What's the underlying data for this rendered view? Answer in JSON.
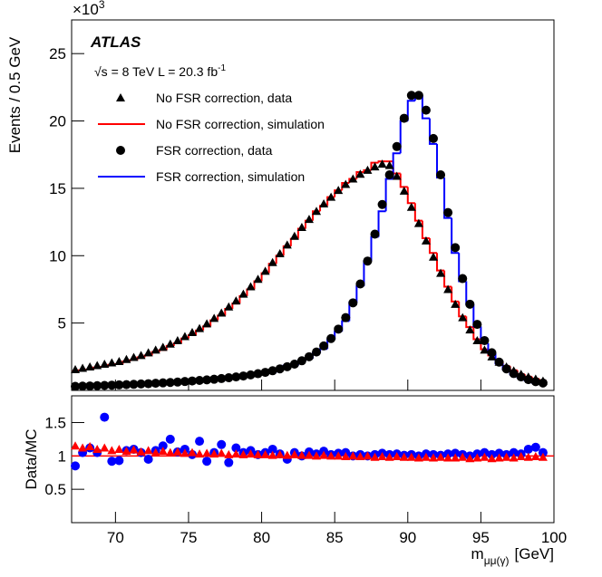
{
  "chart_data": [
    {
      "type": "hist-data",
      "atlas": "ATLAS",
      "energy": "√s = 8 TeV L = 20.3 fb",
      "lumi_exp": "-1",
      "exponent_base": "×10",
      "exponent": "3",
      "ylabel": "Events / 0.5 GeV",
      "xlim": [
        67,
        100
      ],
      "xticks": [
        70,
        75,
        80,
        85,
        90,
        95,
        100
      ],
      "ylim": [
        0,
        27.5
      ],
      "yticks": [
        5,
        10,
        15,
        20,
        25
      ],
      "x": [
        67.25,
        67.75,
        68.25,
        68.75,
        69.25,
        69.75,
        70.25,
        70.75,
        71.25,
        71.75,
        72.25,
        72.75,
        73.25,
        73.75,
        74.25,
        74.75,
        75.25,
        75.75,
        76.25,
        76.75,
        77.25,
        77.75,
        78.25,
        78.75,
        79.25,
        79.75,
        80.25,
        80.75,
        81.25,
        81.75,
        82.25,
        82.75,
        83.25,
        83.75,
        84.25,
        84.75,
        85.25,
        85.75,
        86.25,
        86.75,
        87.25,
        87.75,
        88.25,
        88.75,
        89.25,
        89.75,
        90.25,
        90.75,
        91.25,
        91.75,
        92.25,
        92.75,
        93.25,
        93.75,
        94.25,
        94.75,
        95.25,
        95.75,
        96.25,
        96.75,
        97.25,
        97.75,
        98.25,
        98.75,
        99.25
      ],
      "series": [
        {
          "name": "No FSR correction, data",
          "style": "triangle",
          "color": "#000000",
          "values": [
            1.55,
            1.65,
            1.75,
            1.85,
            1.95,
            2.05,
            2.15,
            2.3,
            2.45,
            2.6,
            2.8,
            3.0,
            3.2,
            3.45,
            3.7,
            4.0,
            4.3,
            4.6,
            4.95,
            5.35,
            5.75,
            6.2,
            6.65,
            7.15,
            7.7,
            8.25,
            8.85,
            9.5,
            10.15,
            10.8,
            11.45,
            12.1,
            12.7,
            13.3,
            13.85,
            14.35,
            14.85,
            15.3,
            15.7,
            16.05,
            16.35,
            16.6,
            16.8,
            16.7,
            15.9,
            14.8,
            13.6,
            12.4,
            11.1,
            9.9,
            8.7,
            7.5,
            6.4,
            5.4,
            4.5,
            3.7,
            3.0,
            2.5,
            2.1,
            1.75,
            1.45,
            1.2,
            1.0,
            0.85,
            0.7
          ]
        },
        {
          "name": "No FSR correction, simulation",
          "style": "step",
          "color": "#ff0000",
          "values": [
            1.4,
            1.5,
            1.55,
            1.7,
            1.75,
            1.9,
            1.95,
            2.15,
            2.25,
            2.45,
            2.6,
            2.85,
            3.0,
            3.3,
            3.5,
            3.85,
            4.1,
            4.45,
            4.75,
            5.2,
            5.55,
            6.05,
            6.45,
            7.0,
            7.5,
            8.1,
            8.7,
            9.4,
            10.0,
            10.7,
            11.25,
            12.0,
            12.6,
            13.3,
            13.7,
            14.35,
            14.85,
            15.4,
            15.7,
            16.2,
            16.35,
            16.9,
            17.0,
            17.0,
            16.1,
            15.1,
            13.9,
            12.6,
            11.3,
            10.2,
            8.9,
            7.7,
            6.6,
            5.5,
            4.7,
            3.8,
            3.05,
            2.6,
            2.15,
            1.8,
            1.5,
            1.2,
            1.02,
            0.86,
            0.71
          ]
        },
        {
          "name": "FSR correction, data",
          "style": "circle",
          "color": "#000000",
          "values": [
            0.3,
            0.32,
            0.33,
            0.35,
            0.37,
            0.39,
            0.41,
            0.43,
            0.45,
            0.48,
            0.5,
            0.53,
            0.56,
            0.59,
            0.62,
            0.66,
            0.7,
            0.74,
            0.78,
            0.83,
            0.88,
            0.94,
            1.0,
            1.07,
            1.15,
            1.24,
            1.34,
            1.46,
            1.6,
            1.76,
            1.95,
            2.2,
            2.5,
            2.85,
            3.3,
            3.85,
            4.55,
            5.4,
            6.5,
            7.9,
            9.6,
            11.6,
            13.8,
            16.0,
            18.1,
            20.2,
            21.9,
            21.9,
            20.8,
            18.7,
            16.0,
            13.2,
            10.6,
            8.3,
            6.4,
            4.9,
            3.7,
            2.8,
            2.1,
            1.6,
            1.25,
            1.0,
            0.8,
            0.65,
            0.55
          ]
        },
        {
          "name": "FSR correction, simulation",
          "style": "step",
          "color": "#0000ff",
          "values": [
            0.35,
            0.31,
            0.3,
            0.33,
            0.24,
            0.42,
            0.44,
            0.4,
            0.41,
            0.46,
            0.53,
            0.49,
            0.49,
            0.47,
            0.58,
            0.6,
            0.69,
            0.61,
            0.85,
            0.79,
            0.75,
            1.04,
            0.89,
            1.02,
            1.06,
            1.22,
            1.28,
            1.33,
            1.55,
            1.85,
            1.86,
            2.2,
            2.36,
            2.77,
            3.08,
            3.77,
            4.38,
            5.14,
            6.5,
            7.75,
            9.6,
            11.4,
            13.3,
            15.7,
            17.6,
            20.0,
            21.5,
            21.9,
            20.2,
            18.3,
            15.8,
            12.8,
            10.2,
            8.1,
            6.4,
            4.75,
            3.5,
            2.75,
            2.0,
            1.57,
            1.19,
            0.97,
            0.73,
            0.58,
            0.52
          ]
        }
      ]
    },
    {
      "type": "ratio",
      "ylabel": "Data/MC",
      "xlabel": "m",
      "xlabel_sub": "μμ(γ)",
      "xlabel_unit": "[GeV]",
      "xlim": [
        67,
        100
      ],
      "xticks": [
        70,
        75,
        80,
        85,
        90,
        95,
        100
      ],
      "ylim": [
        0,
        1.9
      ],
      "yticks": [
        0.5,
        1,
        1.5
      ],
      "reference": 1,
      "x": [
        67.25,
        67.75,
        68.25,
        68.75,
        69.25,
        69.75,
        70.25,
        70.75,
        71.25,
        71.75,
        72.25,
        72.75,
        73.25,
        73.75,
        74.25,
        74.75,
        75.25,
        75.75,
        76.25,
        76.75,
        77.25,
        77.75,
        78.25,
        78.75,
        79.25,
        79.75,
        80.25,
        80.75,
        81.25,
        81.75,
        82.25,
        82.75,
        83.25,
        83.75,
        84.25,
        84.75,
        85.25,
        85.75,
        86.25,
        86.75,
        87.25,
        87.75,
        88.25,
        88.75,
        89.25,
        89.75,
        90.25,
        90.75,
        91.25,
        91.75,
        92.25,
        92.75,
        93.25,
        93.75,
        94.25,
        94.75,
        95.25,
        95.75,
        96.25,
        96.75,
        97.25,
        97.75,
        98.25,
        98.75,
        99.25
      ],
      "series": [
        {
          "style": "circle",
          "color": "#0000ff",
          "values": [
            0.85,
            1.05,
            1.12,
            1.05,
            1.58,
            0.92,
            0.93,
            1.08,
            1.1,
            1.05,
            0.95,
            1.08,
            1.15,
            1.25,
            1.06,
            1.1,
            1.02,
            1.22,
            0.92,
            1.05,
            1.17,
            0.9,
            1.12,
            1.05,
            1.08,
            1.02,
            1.05,
            1.1,
            1.03,
            0.95,
            1.05,
            1.0,
            1.06,
            1.03,
            1.07,
            1.02,
            1.04,
            1.05,
            1.0,
            1.02,
            1.0,
            1.02,
            1.04,
            1.02,
            1.03,
            1.01,
            1.02,
            1.0,
            1.03,
            1.02,
            1.01,
            1.03,
            1.04,
            1.02,
            1.0,
            1.03,
            1.05,
            1.02,
            1.04,
            1.02,
            1.05,
            1.03,
            1.1,
            1.13,
            1.05
          ]
        },
        {
          "style": "triangle",
          "color": "#ff0000",
          "values": [
            1.15,
            1.12,
            1.14,
            1.1,
            1.12,
            1.08,
            1.1,
            1.07,
            1.09,
            1.06,
            1.08,
            1.05,
            1.07,
            1.05,
            1.06,
            1.04,
            1.05,
            1.03,
            1.04,
            1.03,
            1.04,
            1.02,
            1.03,
            1.02,
            1.03,
            1.02,
            1.02,
            1.01,
            1.02,
            1.01,
            1.02,
            1.01,
            1.01,
            1.0,
            1.01,
            1.0,
            1.0,
            0.99,
            1.0,
            0.99,
            1.0,
            0.98,
            0.99,
            0.98,
            0.99,
            0.98,
            0.98,
            0.97,
            0.98,
            0.97,
            0.98,
            0.97,
            0.97,
            0.98,
            0.96,
            0.97,
            0.98,
            0.96,
            0.97,
            0.98,
            0.97,
            0.99,
            0.98,
            0.99,
            0.98
          ]
        }
      ]
    }
  ]
}
